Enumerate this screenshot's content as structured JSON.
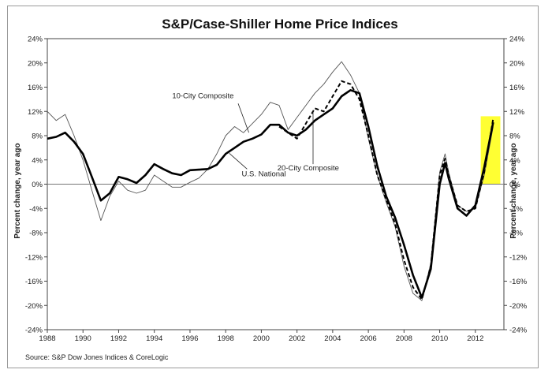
{
  "chart_data": {
    "type": "line",
    "title": "S&P/Case-Shiller Home Price Indices",
    "ylabel_left": "Percent change, year ago",
    "ylabel_right": "Percent change, year ago",
    "source": "Source: S&P Dow Jones Indices & CoreLogic",
    "xlim": [
      1988,
      2013.6
    ],
    "ylim": [
      -24,
      24
    ],
    "x_ticks": [
      "1988",
      "1990",
      "1992",
      "1994",
      "1996",
      "1998",
      "2000",
      "2002",
      "2004",
      "2006",
      "2008",
      "2010",
      "2012"
    ],
    "y_ticks": [
      "24%",
      "20%",
      "16%",
      "12%",
      "8%",
      "4%",
      "0%",
      "-4%",
      "-8%",
      "-12%",
      "-16%",
      "-20%",
      "-24%"
    ],
    "colors": {
      "national": "#000000",
      "ten_city": "#555555",
      "twenty_city": "#000000",
      "highlight": "#ffff33",
      "zero_line": "#777777"
    },
    "highlight_range": {
      "x": [
        2012.3,
        2013.4
      ],
      "y": [
        0,
        11.2
      ]
    },
    "annotations": [
      {
        "text": "10-City Composite",
        "series": "10-City Composite"
      },
      {
        "text": "U.S. National",
        "series": "U.S. National"
      },
      {
        "text": "20-City Composite",
        "series": "20-City Composite"
      }
    ],
    "series": [
      {
        "name": "U.S. National",
        "style": "thick solid",
        "x": [
          1988.0,
          1988.5,
          1989.0,
          1989.5,
          1990.0,
          1990.5,
          1991.0,
          1991.5,
          1992.0,
          1992.5,
          1993.0,
          1993.5,
          1994.0,
          1994.5,
          1995.0,
          1995.5,
          1996.0,
          1996.5,
          1997.0,
          1997.5,
          1998.0,
          1998.5,
          1999.0,
          1999.5,
          2000.0,
          2000.5,
          2001.0,
          2001.5,
          2002.0,
          2002.5,
          2003.0,
          2003.5,
          2004.0,
          2004.5,
          2005.0,
          2005.5,
          2006.0,
          2006.5,
          2007.0,
          2007.5,
          2008.0,
          2008.5,
          2009.0,
          2009.5,
          2010.0,
          2010.3,
          2010.5,
          2011.0,
          2011.5,
          2012.0,
          2012.5,
          2013.0
        ],
        "y": [
          7.5,
          7.8,
          8.5,
          7.0,
          5.0,
          1.2,
          -2.7,
          -1.5,
          1.2,
          0.8,
          0.2,
          1.5,
          3.3,
          2.5,
          1.8,
          1.5,
          2.3,
          2.4,
          2.5,
          3.2,
          5.0,
          6.0,
          7.0,
          7.5,
          8.2,
          9.8,
          9.8,
          8.5,
          8.0,
          9.0,
          10.5,
          11.5,
          12.5,
          14.5,
          15.5,
          15.0,
          9.5,
          3.0,
          -2.0,
          -5.5,
          -10.0,
          -15.0,
          -18.7,
          -14.0,
          0.0,
          3.5,
          1.0,
          -4.0,
          -5.2,
          -3.5,
          2.8,
          10.2
        ]
      },
      {
        "name": "10-City Composite",
        "style": "thin solid",
        "x": [
          1988.0,
          1988.5,
          1989.0,
          1989.5,
          1990.0,
          1990.5,
          1991.0,
          1991.5,
          1992.0,
          1992.5,
          1993.0,
          1993.5,
          1994.0,
          1994.5,
          1995.0,
          1995.5,
          1996.0,
          1996.5,
          1997.0,
          1997.5,
          1998.0,
          1998.5,
          1999.0,
          1999.5,
          2000.0,
          2000.5,
          2001.0,
          2001.5,
          2002.0,
          2002.5,
          2003.0,
          2003.5,
          2004.0,
          2004.5,
          2005.0,
          2005.5,
          2006.0,
          2006.5,
          2007.0,
          2007.5,
          2008.0,
          2008.5,
          2009.0,
          2009.5,
          2010.0,
          2010.3,
          2010.5,
          2011.0,
          2011.5,
          2012.0,
          2012.5,
          2013.0
        ],
        "y": [
          12.0,
          10.5,
          11.5,
          8.0,
          4.0,
          -1.0,
          -6.0,
          -2.0,
          0.5,
          -1.0,
          -1.5,
          -1.0,
          1.5,
          0.5,
          -0.5,
          -0.5,
          0.3,
          1.0,
          2.5,
          5.0,
          8.0,
          9.5,
          8.5,
          10.0,
          11.5,
          13.5,
          13.0,
          9.0,
          11.0,
          13.0,
          15.0,
          16.5,
          18.5,
          20.2,
          18.0,
          15.0,
          7.5,
          1.5,
          -3.0,
          -7.0,
          -13.5,
          -18.0,
          -19.2,
          -13.0,
          2.0,
          5.0,
          2.0,
          -3.5,
          -4.5,
          -4.0,
          1.5,
          9.5
        ]
      },
      {
        "name": "20-City Composite",
        "style": "dashed",
        "x": [
          2001.0,
          2001.5,
          2002.0,
          2002.5,
          2003.0,
          2003.5,
          2004.0,
          2004.5,
          2005.0,
          2005.5,
          2006.0,
          2006.5,
          2007.0,
          2007.5,
          2008.0,
          2008.5,
          2009.0,
          2009.5,
          2010.0,
          2010.3,
          2010.5,
          2011.0,
          2011.5,
          2012.0,
          2012.5,
          2013.0
        ],
        "y": [
          9.5,
          8.5,
          7.5,
          10.0,
          12.5,
          12.0,
          14.5,
          17.0,
          16.5,
          14.0,
          8.0,
          1.5,
          -2.5,
          -6.5,
          -12.5,
          -17.0,
          -19.0,
          -13.5,
          1.5,
          4.2,
          1.5,
          -3.5,
          -4.5,
          -4.0,
          2.0,
          10.8
        ]
      }
    ]
  }
}
